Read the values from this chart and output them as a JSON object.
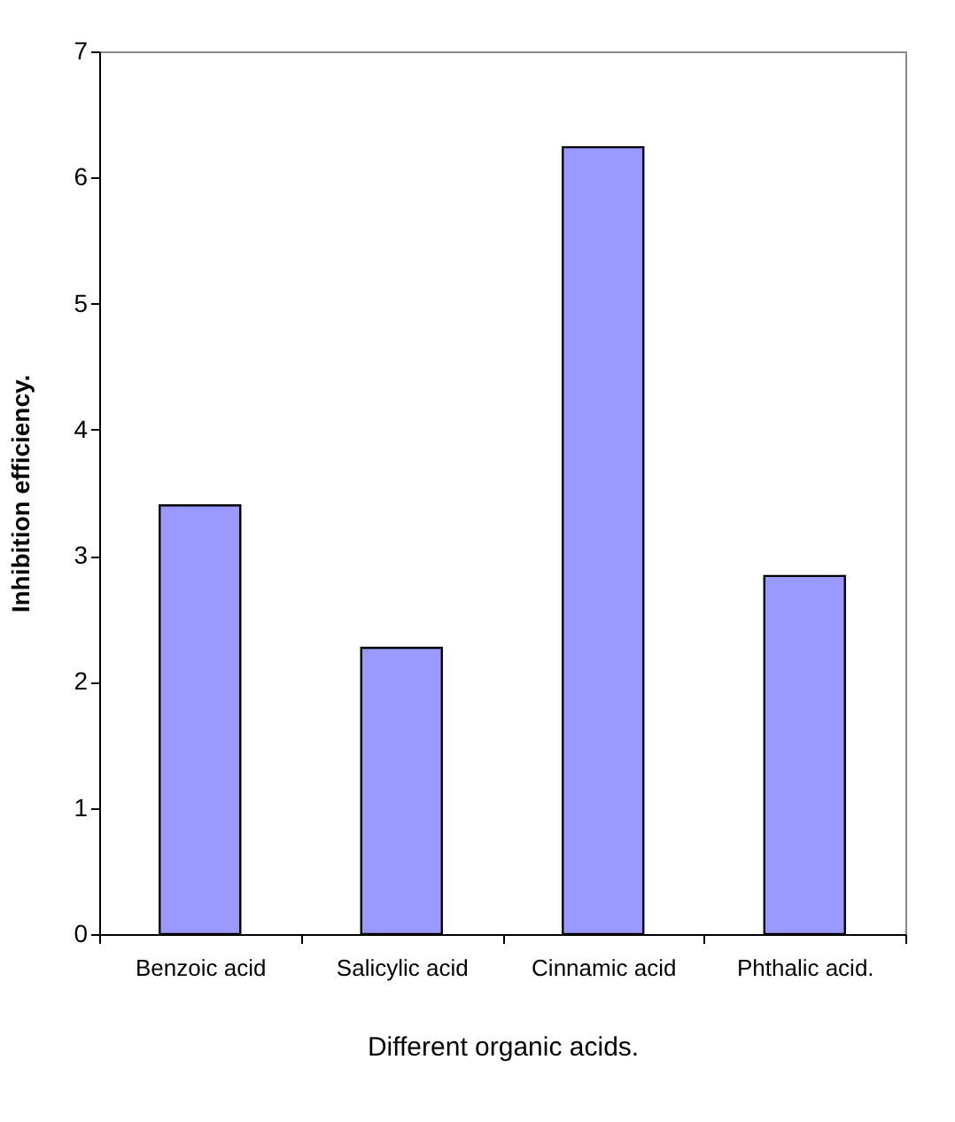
{
  "chart_data": {
    "type": "bar",
    "xlabel": "Different organic acids.",
    "ylabel": "Inhibition efficiency.",
    "categories": [
      "Benzoic acid",
      "Salicylic acid",
      "Cinnamic acid",
      "Phthalic acid."
    ],
    "values": [
      3.4,
      2.27,
      6.24,
      2.84
    ],
    "color": "#9999ff",
    "ylim": [
      0,
      7
    ],
    "yticks": [
      0,
      1,
      2,
      3,
      4,
      5,
      6,
      7
    ],
    "grid": false
  }
}
